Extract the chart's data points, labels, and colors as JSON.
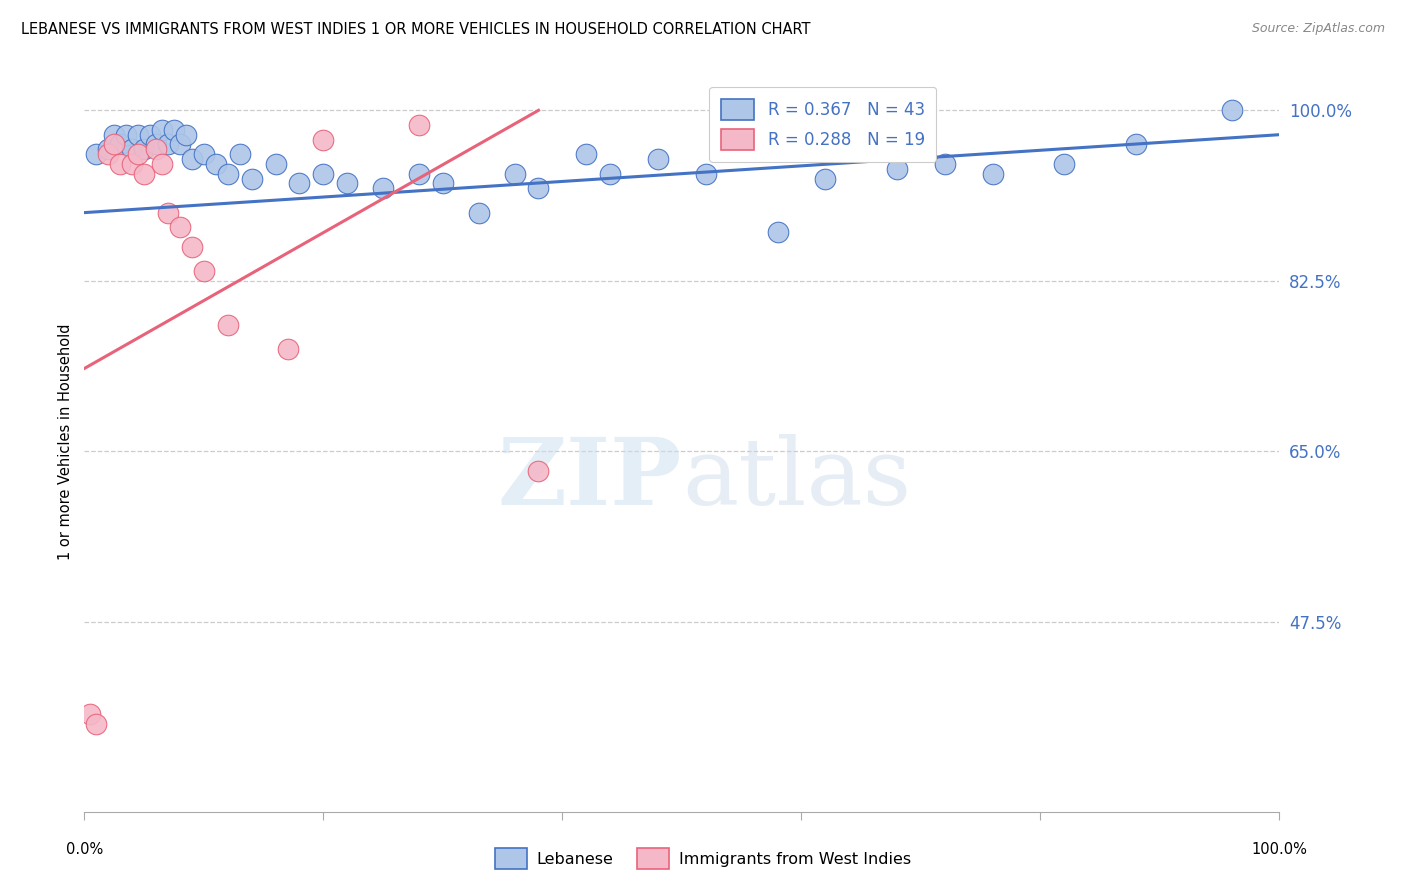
{
  "title": "LEBANESE VS IMMIGRANTS FROM WEST INDIES 1 OR MORE VEHICLES IN HOUSEHOLD CORRELATION CHART",
  "source": "Source: ZipAtlas.com",
  "ylabel": "1 or more Vehicles in Household",
  "yticks": [
    0.3,
    0.475,
    0.65,
    0.825,
    1.0
  ],
  "ytick_labels": [
    "",
    "47.5%",
    "65.0%",
    "82.5%",
    "100.0%"
  ],
  "grid_lines": [
    0.475,
    0.65,
    0.825,
    1.0
  ],
  "xlim": [
    0.0,
    1.0
  ],
  "ylim": [
    0.28,
    1.04
  ],
  "watermark_zip": "ZIP",
  "watermark_atlas": "atlas",
  "legend_blue_r": "R = 0.367",
  "legend_blue_n": "N = 43",
  "legend_pink_r": "R = 0.288",
  "legend_pink_n": "N = 19",
  "blue_color": "#aec6e8",
  "blue_line_color": "#4472c4",
  "pink_color": "#f4b8c8",
  "pink_line_color": "#e8637a",
  "legend_blue_label": "Lebanese",
  "legend_pink_label": "Immigrants from West Indies",
  "blue_scatter_x": [
    0.01,
    0.02,
    0.025,
    0.03,
    0.035,
    0.04,
    0.045,
    0.05,
    0.055,
    0.06,
    0.065,
    0.07,
    0.075,
    0.08,
    0.085,
    0.09,
    0.1,
    0.11,
    0.12,
    0.13,
    0.14,
    0.16,
    0.18,
    0.2,
    0.22,
    0.25,
    0.28,
    0.3,
    0.33,
    0.36,
    0.38,
    0.42,
    0.44,
    0.48,
    0.52,
    0.58,
    0.62,
    0.68,
    0.72,
    0.76,
    0.82,
    0.88,
    0.96
  ],
  "blue_scatter_y": [
    0.955,
    0.96,
    0.975,
    0.965,
    0.975,
    0.96,
    0.975,
    0.96,
    0.975,
    0.965,
    0.98,
    0.965,
    0.98,
    0.965,
    0.975,
    0.95,
    0.955,
    0.945,
    0.935,
    0.955,
    0.93,
    0.945,
    0.925,
    0.935,
    0.925,
    0.92,
    0.935,
    0.925,
    0.895,
    0.935,
    0.92,
    0.955,
    0.935,
    0.95,
    0.935,
    0.875,
    0.93,
    0.94,
    0.945,
    0.935,
    0.945,
    0.965,
    1.0
  ],
  "pink_scatter_x": [
    0.005,
    0.01,
    0.02,
    0.025,
    0.03,
    0.04,
    0.045,
    0.05,
    0.06,
    0.065,
    0.07,
    0.08,
    0.09,
    0.1,
    0.12,
    0.17,
    0.2,
    0.28,
    0.38
  ],
  "pink_scatter_y": [
    0.38,
    0.37,
    0.955,
    0.965,
    0.945,
    0.945,
    0.955,
    0.935,
    0.96,
    0.945,
    0.895,
    0.88,
    0.86,
    0.835,
    0.78,
    0.755,
    0.97,
    0.985,
    0.63
  ],
  "blue_line_x0": 0.0,
  "blue_line_x1": 1.0,
  "blue_line_y0": 0.895,
  "blue_line_y1": 0.975,
  "pink_line_x0": 0.0,
  "pink_line_x1": 0.38,
  "pink_line_y0": 0.735,
  "pink_line_y1": 1.0
}
